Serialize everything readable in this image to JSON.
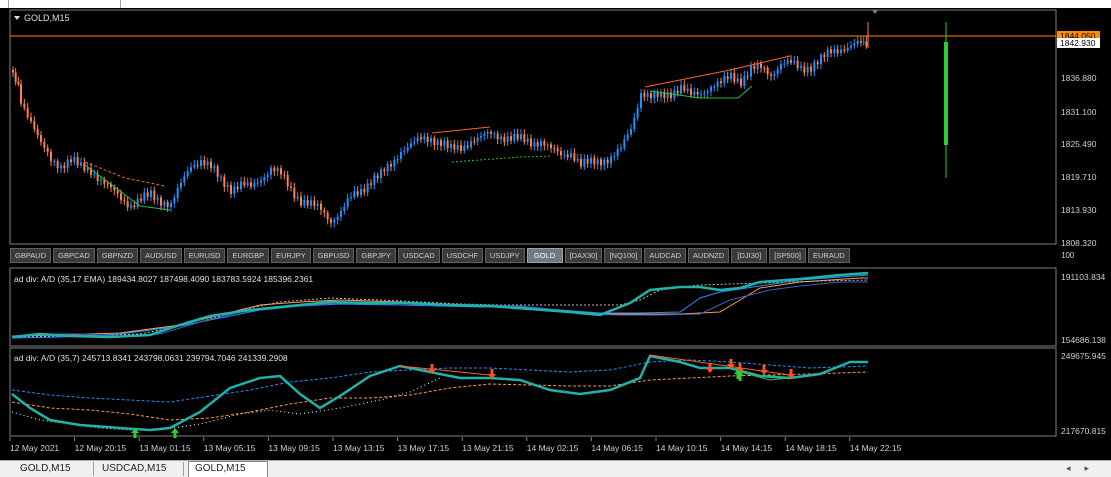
{
  "window": {
    "chart_title": "GOLD,M15",
    "bid_price": "1842.930",
    "ask_price": "1844.050"
  },
  "price_axis": [
    "1836.880",
    "1831.100",
    "1825.490",
    "1819.710",
    "1813.930",
    "1808.320"
  ],
  "symbol_bar": {
    "items": [
      "GBPAUD",
      "GBPCAD",
      "GBPNZD",
      "AUDUSD",
      "EURUSD",
      "EURGBP",
      "EURJPY",
      "GBPUSD",
      "GBPJPY",
      "USDCAD",
      "USDCHF",
      "USDJPY",
      "GOLD",
      "[DAX30]",
      "[NQ100]",
      "AUDCAD",
      "AUDNZD",
      "[DJI30]",
      "[SP500]",
      "EURAUD"
    ],
    "active": "GOLD"
  },
  "indicator1": {
    "label": "ad div: A/D (35,17 EMA) 189434.8027 187498.4090 183783.5924 185396.2361",
    "axis_top": "191103.834",
    "axis_bottom": "154686.138",
    "axis_right_small": "100"
  },
  "indicator2": {
    "label": "ad div: A/D (35,7) 245713.8341 243798.0631 239794.7046 241339.2908",
    "axis_top": "249675.945",
    "axis_bottom": "217670.815"
  },
  "time_axis": [
    "12 May 2021",
    "12 May 20:15",
    "13 May 01:15",
    "13 May 05:15",
    "13 May 09:15",
    "13 May 13:15",
    "13 May 17:15",
    "13 May 21:15",
    "14 May 02:15",
    "14 May 06:15",
    "14 May 10:15",
    "14 May 14:15",
    "14 May 18:15",
    "14 May 22:15"
  ],
  "tabs": {
    "items": [
      "GOLD,M15",
      "USDCAD,M15",
      "GOLD,M15"
    ],
    "active_index": 2
  },
  "colors": {
    "bull": "#1e90ff",
    "bear": "#ff7f50",
    "ad_line": "#20b2aa",
    "ask_line": "#ff8c00",
    "volume_bar": "#32cd32"
  }
}
